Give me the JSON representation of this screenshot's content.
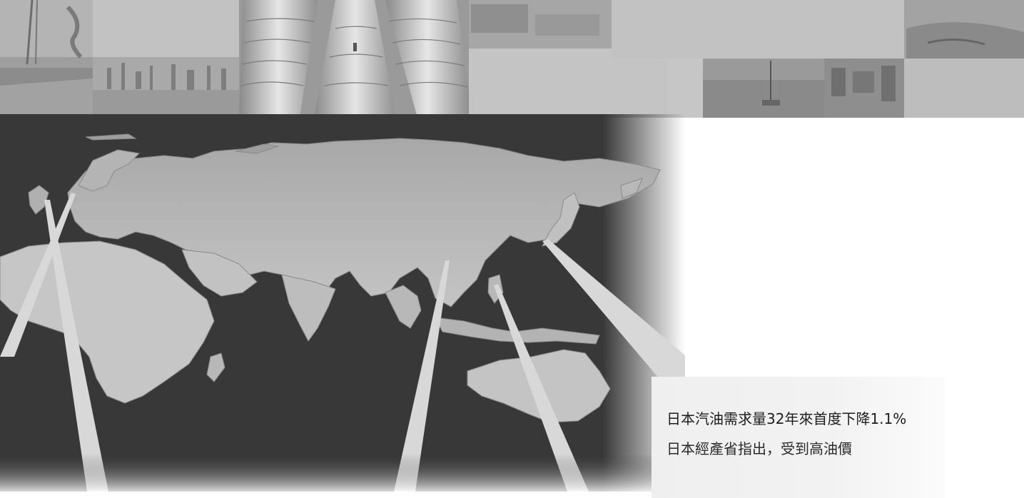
{
  "callout": {
    "headline": "日本汽油需求量32年來首度下降1.1%",
    "body": "日本經產省指出，受到高油價"
  },
  "colors": {
    "map_background": "#383838",
    "land": "#b7b7b7",
    "callout_card": "#efefef",
    "pointer_lines": "#d8d8d8"
  },
  "photo_strip": {
    "icons": [
      "oil-rig-photo",
      "pipeline-photo",
      "refinery-photo",
      "offshore-platform-photo",
      "industrial-plant-photo"
    ]
  }
}
